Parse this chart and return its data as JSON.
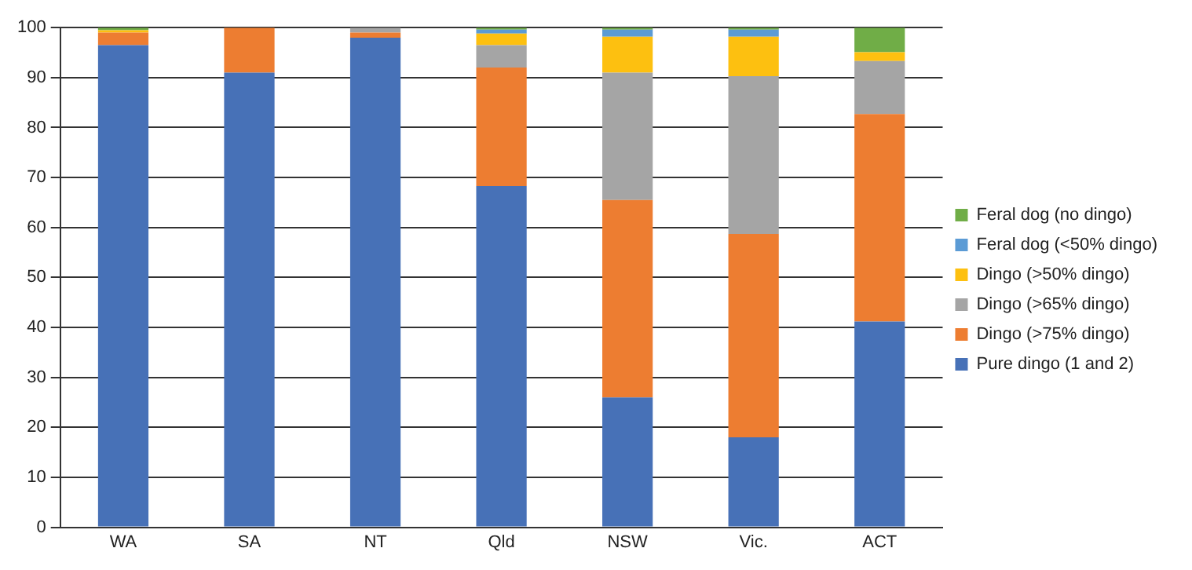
{
  "chart_data": {
    "type": "bar",
    "stacked": true,
    "categories": [
      "WA",
      "SA",
      "NT",
      "Qld",
      "NSW",
      "Vic.",
      "ACT"
    ],
    "series": [
      {
        "name": "Pure dingo (1 and 2)",
        "color": "#4771b7",
        "values": [
          96.5,
          91,
          98,
          68.3,
          26,
          18,
          41.2
        ]
      },
      {
        "name": "Dingo (>75% dingo)",
        "color": "#ed7d31",
        "values": [
          2.5,
          9,
          1,
          23.7,
          39.5,
          40.7,
          41.5
        ]
      },
      {
        "name": "Dingo (>65% dingo)",
        "color": "#a5a5a5",
        "values": [
          0,
          0,
          1,
          4.5,
          25.5,
          31.6,
          10.6
        ]
      },
      {
        "name": "Dingo (>50% dingo)",
        "color": "#fdc010",
        "values": [
          0.5,
          0,
          0,
          2.3,
          7.2,
          7.9,
          1.8
        ]
      },
      {
        "name": "Feral dog (<50% dingo)",
        "color": "#5b9bd5",
        "values": [
          0,
          0,
          0,
          0.8,
          1.4,
          1.4,
          0
        ]
      },
      {
        "name": "Feral dog (no dingo)",
        "color": "#70ad47",
        "values": [
          0.5,
          0,
          0,
          0.4,
          0.4,
          0.4,
          4.9
        ]
      }
    ],
    "ylim": [
      0,
      100
    ],
    "yticks": [
      0,
      10,
      20,
      30,
      40,
      50,
      60,
      70,
      80,
      90,
      100
    ],
    "grid": "y",
    "legend": "right"
  }
}
